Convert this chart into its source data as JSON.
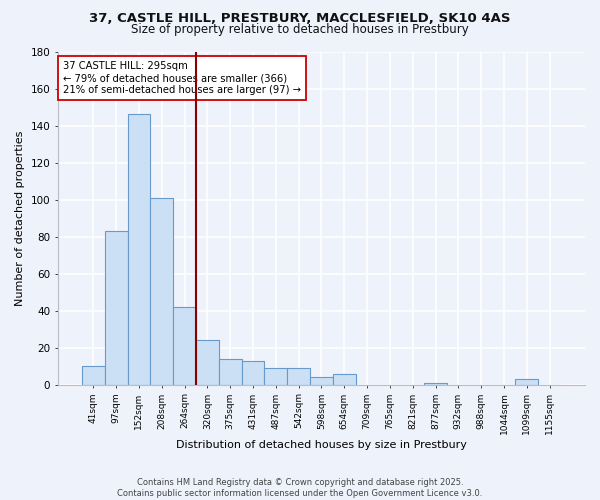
{
  "title_line1": "37, CASTLE HILL, PRESTBURY, MACCLESFIELD, SK10 4AS",
  "title_line2": "Size of property relative to detached houses in Prestbury",
  "xlabel": "Distribution of detached houses by size in Prestbury",
  "ylabel": "Number of detached properties",
  "categories": [
    "41sqm",
    "97sqm",
    "152sqm",
    "208sqm",
    "264sqm",
    "320sqm",
    "375sqm",
    "431sqm",
    "487sqm",
    "542sqm",
    "598sqm",
    "654sqm",
    "709sqm",
    "765sqm",
    "821sqm",
    "877sqm",
    "932sqm",
    "988sqm",
    "1044sqm",
    "1099sqm",
    "1155sqm"
  ],
  "values": [
    10,
    83,
    146,
    101,
    42,
    24,
    14,
    13,
    9,
    9,
    4,
    6,
    0,
    0,
    0,
    1,
    0,
    0,
    0,
    3,
    0
  ],
  "bar_color": "#cce0f5",
  "bar_edge_color": "#6699cc",
  "vline_color": "#880000",
  "vline_x_index": 5,
  "annotation_title": "37 CASTLE HILL: 295sqm",
  "annotation_line1": "← 79% of detached houses are smaller (366)",
  "annotation_line2": "21% of semi-detached houses are larger (97) →",
  "annotation_box_color": "#ffffff",
  "annotation_box_edge": "#cc0000",
  "ylim": [
    0,
    180
  ],
  "yticks": [
    0,
    20,
    40,
    60,
    80,
    100,
    120,
    140,
    160,
    180
  ],
  "footer_line1": "Contains HM Land Registry data © Crown copyright and database right 2025.",
  "footer_line2": "Contains public sector information licensed under the Open Government Licence v3.0.",
  "background_color": "#eef2fb",
  "grid_color": "#d0d8ee",
  "title_fontsize": 9.5,
  "subtitle_fontsize": 8.5
}
